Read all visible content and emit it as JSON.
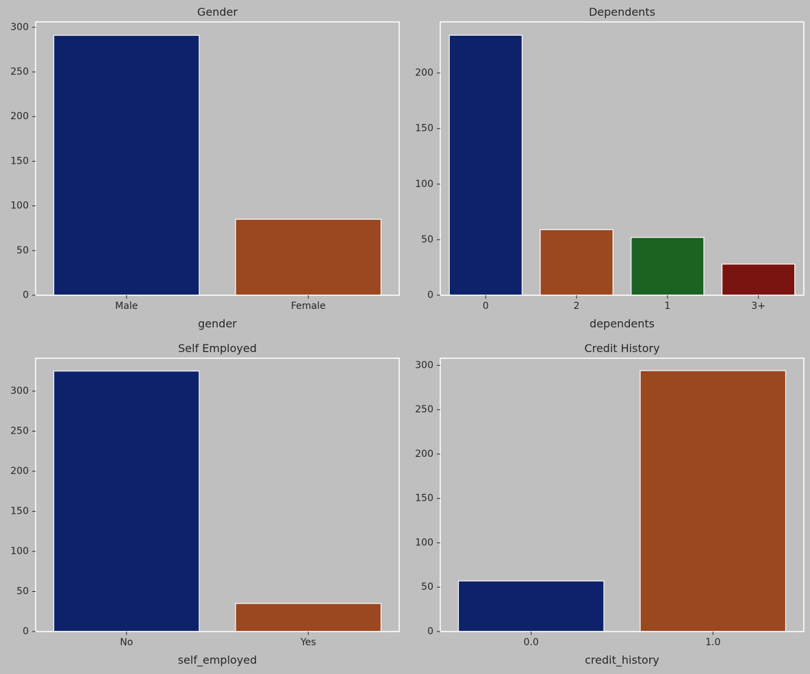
{
  "chart_data": [
    {
      "type": "bar",
      "title": "Gender",
      "xlabel": "gender",
      "ylabel": "",
      "categories": [
        "Male",
        "Female"
      ],
      "values": [
        291,
        85
      ],
      "colors": [
        "#0d226b",
        "#9b4720"
      ],
      "yticks": [
        0,
        50,
        100,
        150,
        200,
        250,
        300
      ],
      "ylim": [
        0,
        306
      ],
      "grid": false,
      "legend": "none"
    },
    {
      "type": "bar",
      "title": "Dependents",
      "xlabel": "dependents",
      "ylabel": "",
      "categories": [
        "0",
        "2",
        "1",
        "3+"
      ],
      "values": [
        234,
        59,
        52,
        28
      ],
      "colors": [
        "#0d226b",
        "#9b4720",
        "#1c6222",
        "#7a1411"
      ],
      "yticks": [
        0,
        50,
        100,
        150,
        200
      ],
      "ylim": [
        0,
        246
      ],
      "grid": false,
      "legend": "none"
    },
    {
      "type": "bar",
      "title": "Self Employed",
      "xlabel": "self_employed",
      "ylabel": "",
      "categories": [
        "No",
        "Yes"
      ],
      "values": [
        325,
        35
      ],
      "colors": [
        "#0d226b",
        "#9b4720"
      ],
      "yticks": [
        0,
        50,
        100,
        150,
        200,
        250,
        300
      ],
      "ylim": [
        0,
        341
      ],
      "grid": false,
      "legend": "none"
    },
    {
      "type": "bar",
      "title": "Credit History",
      "xlabel": "credit_history",
      "ylabel": "",
      "categories": [
        "0.0",
        "1.0"
      ],
      "values": [
        57,
        294
      ],
      "colors": [
        "#0d226b",
        "#9b4720"
      ],
      "yticks": [
        0,
        50,
        100,
        150,
        200,
        250,
        300
      ],
      "ylim": [
        0,
        308
      ],
      "grid": false,
      "legend": "none"
    }
  ]
}
